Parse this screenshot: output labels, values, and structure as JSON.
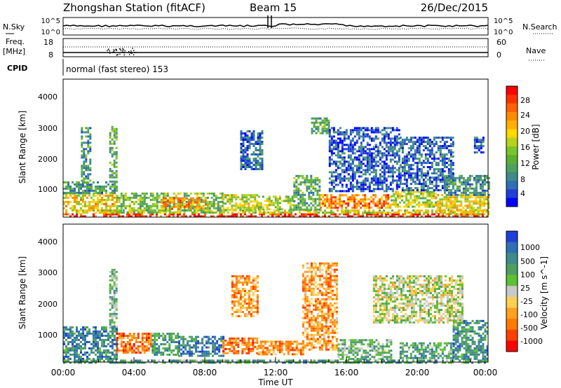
{
  "header": {
    "title": "Zhongshan Station (fitACF)",
    "beam": "Beam 15",
    "date": "26/Dec/2015"
  },
  "sky_panel": {
    "left_label": "N.Sky",
    "left_ticks": [
      "10^5",
      "10^0"
    ],
    "right_label": "N.Search",
    "right_ticks": [
      "10^5",
      "10^0"
    ]
  },
  "freq_panel": {
    "left_label_line1": "Freq.",
    "left_label_line2": "[MHz]",
    "left_ticks": [
      "18",
      "8"
    ],
    "right_label": "Nave",
    "right_ticks": [
      "60",
      "0"
    ],
    "cpid_label": "CPID",
    "cpid_text": "normal (fast stereo) 153"
  },
  "x_axis": {
    "ticks": [
      "00:00",
      "04:00",
      "08:00",
      "12:00",
      "16:00",
      "20:00",
      "00:00"
    ],
    "label": "Time UT"
  },
  "chart_data": [
    {
      "type": "heatmap",
      "panel": "power",
      "xlabel": "Time UT",
      "ylabel": "Slant Range [km]",
      "xlim": [
        0,
        24
      ],
      "ylim": [
        180,
        4500
      ],
      "y_ticks": [
        "1000",
        "2000",
        "3000",
        "4000"
      ],
      "colorbar": {
        "label": "Power [dB]",
        "ticks": [
          "4",
          "8",
          "12",
          "16",
          "20",
          "24",
          "28"
        ],
        "colors": [
          "#0000ff",
          "#1f3fd8",
          "#2f6fb5",
          "#3f8a8a",
          "#4fa060",
          "#5cb030",
          "#7ac52a",
          "#b8d21a",
          "#ffd800",
          "#ffb000",
          "#ff8c00",
          "#ff6000",
          "#ff3000",
          "#ff0000"
        ]
      },
      "regions": [
        {
          "t": [
            0.0,
            24.0
          ],
          "r": [
            180,
            300
          ],
          "level": 0.92
        },
        {
          "t": [
            0.0,
            24.0
          ],
          "r": [
            300,
            420
          ],
          "level": 0.55
        },
        {
          "t": [
            0.0,
            3.0
          ],
          "r": [
            420,
            950
          ],
          "level": 0.62
        },
        {
          "t": [
            0.0,
            3.0
          ],
          "r": [
            950,
            1300
          ],
          "level": 0.3
        },
        {
          "t": [
            3.0,
            9.0
          ],
          "r": [
            300,
            950
          ],
          "level": 0.42
        },
        {
          "t": [
            5.5,
            8.0
          ],
          "r": [
            420,
            800
          ],
          "level": 0.7
        },
        {
          "t": [
            9.0,
            11.0
          ],
          "r": [
            420,
            900
          ],
          "level": 0.55
        },
        {
          "t": [
            11.0,
            13.0
          ],
          "r": [
            420,
            850
          ],
          "level": 0.5
        },
        {
          "t": [
            13.0,
            14.5
          ],
          "r": [
            420,
            1500
          ],
          "level": 0.35
        },
        {
          "t": [
            14.0,
            15.0
          ],
          "r": [
            2800,
            3300
          ],
          "level": 0.38
        },
        {
          "t": [
            14.5,
            18.5
          ],
          "r": [
            500,
            900
          ],
          "level": 0.78
        },
        {
          "t": [
            15.0,
            19.0
          ],
          "r": [
            1000,
            3000
          ],
          "level": 0.15
        },
        {
          "t": [
            18.5,
            21.0
          ],
          "r": [
            500,
            1000
          ],
          "level": 0.5
        },
        {
          "t": [
            19.0,
            22.0
          ],
          "r": [
            1000,
            2700
          ],
          "level": 0.18
        },
        {
          "t": [
            21.0,
            24.0
          ],
          "r": [
            300,
            900
          ],
          "level": 0.6
        },
        {
          "t": [
            21.5,
            24.0
          ],
          "r": [
            900,
            1500
          ],
          "level": 0.28
        },
        {
          "t": [
            23.2,
            23.7
          ],
          "r": [
            2200,
            2700
          ],
          "level": 0.15
        },
        {
          "t": [
            2.6,
            3.0
          ],
          "r": [
            1300,
            3100
          ],
          "level": 0.4
        },
        {
          "t": [
            10.0,
            11.3
          ],
          "r": [
            1700,
            2900
          ],
          "level": 0.2
        },
        {
          "t": [
            1.0,
            1.5
          ],
          "r": [
            1200,
            3000
          ],
          "level": 0.3
        }
      ]
    },
    {
      "type": "heatmap",
      "panel": "velocity",
      "xlabel": "Time UT",
      "ylabel": "Slant Range [km]",
      "xlim": [
        0,
        24
      ],
      "ylim": [
        180,
        4500
      ],
      "y_ticks": [
        "1000",
        "2000",
        "3000",
        "4000"
      ],
      "colorbar": {
        "label": "Velocity [m s^-1]",
        "ticks": [
          "1000",
          "500",
          "100",
          "25",
          "-25",
          "-100",
          "-500",
          "-1000"
        ],
        "colors": [
          "#1f3fd8",
          "#2f6fb5",
          "#3f8a8a",
          "#4fa060",
          "#5cc030",
          "#c8c8c8",
          "#ffd050",
          "#ffa020",
          "#ff7a00",
          "#ff4000",
          "#ff0000"
        ]
      },
      "regions": [
        {
          "t": [
            0.0,
            3.0
          ],
          "r": [
            200,
            1300
          ],
          "level": 0.22
        },
        {
          "t": [
            0.0,
            24.0
          ],
          "r": [
            180,
            260
          ],
          "level": 0.32
        },
        {
          "t": [
            3.0,
            5.0
          ],
          "r": [
            500,
            1100
          ],
          "level": 0.8
        },
        {
          "t": [
            5.0,
            6.5
          ],
          "r": [
            400,
            1100
          ],
          "level": 0.3
        },
        {
          "t": [
            6.5,
            9.0
          ],
          "r": [
            400,
            1000
          ],
          "level": 0.2
        },
        {
          "t": [
            9.0,
            11.0
          ],
          "r": [
            450,
            950
          ],
          "level": 0.78
        },
        {
          "t": [
            11.0,
            13.5
          ],
          "r": [
            400,
            850
          ],
          "level": 0.72
        },
        {
          "t": [
            13.5,
            15.5
          ],
          "r": [
            600,
            3300
          ],
          "level": 0.7
        },
        {
          "t": [
            15.5,
            18.5
          ],
          "r": [
            300,
            900
          ],
          "level": 0.38
        },
        {
          "t": [
            17.5,
            22.5
          ],
          "r": [
            1400,
            2900
          ],
          "level": 0.5
        },
        {
          "t": [
            19.0,
            22.0
          ],
          "r": [
            300,
            800
          ],
          "level": 0.3
        },
        {
          "t": [
            22.0,
            24.0
          ],
          "r": [
            300,
            1500
          ],
          "level": 0.25
        },
        {
          "t": [
            9.5,
            11.0
          ],
          "r": [
            1600,
            2900
          ],
          "level": 0.7
        },
        {
          "t": [
            2.6,
            3.0
          ],
          "r": [
            1300,
            3100
          ],
          "level": 0.35
        }
      ]
    }
  ]
}
